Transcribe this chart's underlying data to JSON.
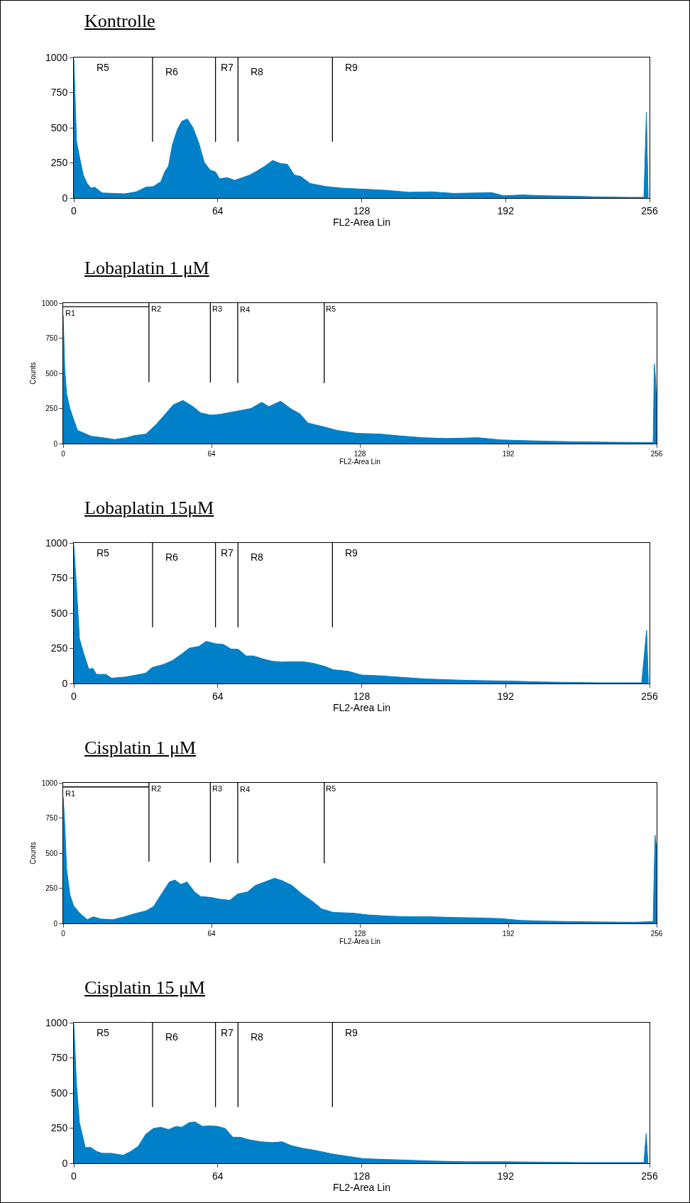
{
  "chart_data": [
    {
      "type": "area",
      "title": "Kontrolle",
      "xlabel": "FL2-Area Lin",
      "xlim": [
        0,
        256
      ],
      "xticks": [
        0,
        64,
        128,
        192,
        256
      ],
      "ylim": [
        0,
        1000
      ],
      "yticks": [
        0,
        250,
        500,
        750,
        1000
      ],
      "series": [
        {
          "color": "#0080c8",
          "x": [
            0,
            1.2,
            2.5,
            4.2,
            5.9,
            7.6,
            9.3,
            12.6,
            17.7,
            22.7,
            27.8,
            32,
            35.4,
            38.7,
            40.4,
            42.1,
            43.8,
            46,
            48,
            50.5,
            53,
            55.6,
            58,
            60.6,
            63,
            64.8,
            68.2,
            71.5,
            75,
            78.3,
            81.6,
            85,
            88.4,
            91.8,
            95,
            98,
            101,
            105,
            112,
            118.7,
            128.8,
            138.9,
            149,
            159,
            169,
            179,
            186,
            191,
            199.5,
            209.6,
            219.7,
            233,
            246.6,
            253.5,
            254.6,
            255.4
          ],
          "values": [
            990,
            404,
            295,
            164,
            104,
            71,
            77,
            36,
            33,
            30,
            44,
            77,
            82,
            117,
            186,
            227,
            377,
            486,
            546,
            563,
            500,
            391,
            254,
            199,
            186,
            137,
            145,
            126,
            145,
            164,
            194,
            227,
            268,
            246,
            240,
            164,
            153,
            104,
            82,
            71,
            63,
            55,
            41,
            44,
            33,
            36,
            38,
            16,
            22,
            16,
            14,
            8,
            5,
            5,
            610,
            0
          ]
        }
      ],
      "ref_lines": [
        {
          "axis": "x",
          "value": 35,
          "color": "#000000"
        },
        {
          "axis": "x",
          "value": 63,
          "color": "#000000"
        },
        {
          "axis": "x",
          "value": 73,
          "color": "#000000"
        },
        {
          "axis": "x",
          "value": 115,
          "color": "#000000"
        }
      ],
      "annotations": [
        "R5",
        "R6",
        "R7",
        "R8",
        "R9"
      ]
    },
    {
      "type": "area",
      "title": "Lobaplatin 1 μM",
      "xlabel": "FL2-Area Lin",
      "ylabel": "Counts",
      "xlim": [
        0,
        256
      ],
      "xticks": [
        0,
        64,
        128,
        192,
        256
      ],
      "ylim": [
        0,
        1000
      ],
      "yticks": [
        0,
        250,
        500,
        750,
        1000
      ],
      "series": [
        {
          "color": "#0080c8",
          "x": [
            0,
            0.7,
            1.5,
            2.9,
            4.5,
            6.2,
            8.8,
            12.1,
            17.2,
            22.2,
            27.3,
            30.6,
            35.7,
            39.9,
            44.1,
            47.5,
            51.7,
            56,
            59.3,
            63.5,
            67.7,
            71,
            76,
            81,
            85.7,
            88.7,
            93.8,
            98,
            102.2,
            105.6,
            112.3,
            118.2,
            126.6,
            136.7,
            145,
            155.2,
            165.3,
            178.8,
            189,
            199,
            210.8,
            222.6,
            236,
            249.5,
            254.5,
            255,
            255.5,
            256
          ],
          "values": [
            914,
            523,
            354,
            250,
            172,
            94,
            76,
            52,
            42,
            29,
            42,
            57,
            68,
            133,
            211,
            276,
            307,
            263,
            219,
            203,
            208,
            219,
            234,
            250,
            294,
            263,
            302,
            250,
            211,
            146,
            120,
            94,
            73,
            68,
            55,
            42,
            36,
            42,
            26,
            21,
            16,
            13,
            10,
            8,
            8,
            568,
            471,
            276
          ]
        },
        {
          "type": "line",
          "color": "#000000",
          "x": [
            0,
            37
          ],
          "values": [
            974,
            974
          ]
        },
        {
          "type": "line",
          "color": "#000000",
          "x": [
            37,
            37
          ],
          "values": [
            1000,
            437
          ]
        },
        {
          "type": "line",
          "color": "#000000",
          "x": [
            63.5,
            63.5
          ],
          "values": [
            1000,
            435
          ]
        },
        {
          "type": "line",
          "color": "#000000",
          "x": [
            75.3,
            75.3
          ],
          "values": [
            1000,
            430
          ]
        },
        {
          "type": "line",
          "color": "#000000",
          "x": [
            112.6,
            112.6
          ],
          "values": [
            1000,
            430
          ]
        }
      ],
      "annotations": [
        {
          "text": "R1",
          "x": 0.3,
          "y": 927
        },
        {
          "text": "R2",
          "x": 37.4,
          "y": 961
        },
        {
          "text": "R3",
          "x": 63.8,
          "y": 961
        },
        {
          "text": "R4",
          "x": 75.5,
          "y": 955
        },
        {
          "text": "R5",
          "x": 112.8,
          "y": 961
        }
      ]
    },
    {
      "type": "area",
      "title": "Lobaplatin 15μM",
      "xlabel": "FL2-Area Lin",
      "xlim": [
        0,
        256
      ],
      "xticks": [
        0,
        64,
        128,
        192,
        256
      ],
      "ylim": [
        0,
        1000
      ],
      "yticks": [
        0,
        250,
        500,
        750,
        1000
      ],
      "series": [
        {
          "color": "#0080c8",
          "x": [
            0,
            1.2,
            2.5,
            4.2,
            6.7,
            8.4,
            10.1,
            14.3,
            16.8,
            22.7,
            27.8,
            32,
            34.8,
            39.6,
            43.8,
            48,
            51.3,
            55.6,
            58.9,
            63.1,
            66.5,
            69.9,
            73.2,
            76.6,
            80,
            84.2,
            88.4,
            92.6,
            97.6,
            101.9,
            106.9,
            112,
            115.3,
            122,
            128,
            137.2,
            145.6,
            155.7,
            165.8,
            176,
            186,
            196,
            208,
            219.7,
            233,
            246.6,
            252.5,
            254.7,
            255.5
          ],
          "values": [
            980,
            687,
            319,
            223,
            101,
            109,
            65,
            65,
            38,
            46,
            60,
            74,
            114,
            134,
            163,
            210,
            251,
            264,
            300,
            283,
            278,
            245,
            243,
            196,
            196,
            174,
            158,
            153,
            155,
            155,
            142,
            120,
            98,
            87,
            60,
            54,
            44,
            33,
            27,
            22,
            19,
            16,
            11,
            8,
            5,
            5,
            5,
            379,
            5
          ]
        }
      ],
      "ref_lines": [
        {
          "axis": "x",
          "value": 35,
          "color": "#000000"
        },
        {
          "axis": "x",
          "value": 63,
          "color": "#000000"
        },
        {
          "axis": "x",
          "value": 73,
          "color": "#000000"
        },
        {
          "axis": "x",
          "value": 115,
          "color": "#000000"
        }
      ],
      "annotations": [
        "R5",
        "R6",
        "R7",
        "R8",
        "R9"
      ]
    },
    {
      "type": "area",
      "title": "Cisplatin 1 μM",
      "xlabel": "FL2-Area Lin",
      "ylabel": "Counts",
      "xlim": [
        0,
        256
      ],
      "xticks": [
        0,
        64,
        128,
        192,
        256
      ],
      "ylim": [
        0,
        1000
      ],
      "yticks": [
        0,
        250,
        500,
        750,
        1000
      ],
      "series": [
        {
          "color": "#0080c8",
          "x": [
            0,
            0.7,
            1.5,
            2.9,
            4.5,
            7.1,
            10.4,
            13,
            16.3,
            21.4,
            26.4,
            30.6,
            35.7,
            39,
            42.4,
            45.8,
            48.3,
            50.8,
            53.4,
            56.7,
            59.3,
            63.5,
            67.7,
            71.9,
            75.3,
            79.5,
            82.8,
            87,
            91.2,
            94.6,
            98.8,
            103,
            108,
            111.4,
            116.5,
            124.9,
            131.6,
            140,
            148.5,
            158.6,
            168.7,
            178.8,
            188.9,
            197.3,
            207.4,
            219.2,
            232.7,
            246.1,
            254.5,
            255.3,
            255.9,
            256
          ],
          "values": [
            900,
            700,
            386,
            204,
            125,
            73,
            26,
            47,
            31,
            26,
            47,
            68,
            89,
            120,
            209,
            295,
            308,
            277,
            295,
            224,
            191,
            185,
            172,
            164,
            209,
            224,
            269,
            295,
            321,
            303,
            269,
            209,
            151,
            104,
            78,
            73,
            60,
            52,
            47,
            47,
            42,
            39,
            34,
            21,
            16,
            13,
            10,
            8,
            13,
            629,
            543,
            256
          ]
        },
        {
          "type": "line",
          "color": "#000000",
          "x": [
            0,
            37
          ],
          "values": [
            971,
            971
          ]
        },
        {
          "type": "line",
          "color": "#000000",
          "x": [
            37,
            37
          ],
          "values": [
            1000,
            439
          ]
        },
        {
          "type": "line",
          "color": "#000000",
          "x": [
            63.5,
            63.5
          ],
          "values": [
            1000,
            433
          ]
        },
        {
          "type": "line",
          "color": "#000000",
          "x": [
            75.3,
            75.3
          ],
          "values": [
            1000,
            428
          ]
        },
        {
          "type": "line",
          "color": "#000000",
          "x": [
            112.6,
            112.6
          ],
          "values": [
            1000,
            428
          ]
        }
      ],
      "annotations": [
        {
          "text": "R1",
          "x": 0.3,
          "y": 924
        },
        {
          "text": "R2",
          "x": 37.4,
          "y": 961
        },
        {
          "text": "R3",
          "x": 63.8,
          "y": 961
        },
        {
          "text": "R4",
          "x": 75.5,
          "y": 953
        },
        {
          "text": "R5",
          "x": 112.8,
          "y": 961
        }
      ]
    },
    {
      "type": "area",
      "title": "Cisplatin 15 μM",
      "xlabel": "FL2-Area Lin",
      "xlim": [
        0,
        256
      ],
      "xticks": [
        0,
        64,
        128,
        192,
        256
      ],
      "ylim": [
        0,
        1000
      ],
      "yticks": [
        0,
        250,
        500,
        750,
        1000
      ],
      "series": [
        {
          "color": "#0080c8",
          "x": [
            0,
            1.2,
            2.5,
            5.1,
            7.6,
            10.1,
            12.6,
            16.8,
            21.9,
            25.3,
            28.6,
            32,
            35.4,
            38.7,
            42.1,
            45.5,
            48,
            51.3,
            53.9,
            57.2,
            60.6,
            64,
            67.3,
            70.7,
            74,
            78.3,
            83.3,
            88.4,
            92.6,
            96.8,
            101.9,
            106.9,
            112,
            115.3,
            122,
            128.8,
            139,
            149,
            159,
            174,
            191,
            208,
            224.7,
            241.6,
            253.5,
            254.5,
            255.3
          ],
          "values": [
            990,
            561,
            289,
            112,
            112,
            84,
            71,
            71,
            57,
            84,
            120,
            207,
            248,
            256,
            240,
            262,
            256,
            289,
            294,
            262,
            267,
            262,
            248,
            185,
            185,
            166,
            153,
            147,
            153,
            125,
            106,
            93,
            76,
            65,
            49,
            33,
            27,
            22,
            16,
            11,
            11,
            8,
            5,
            5,
            5,
            213,
            0
          ]
        }
      ],
      "ref_lines": [
        {
          "axis": "x",
          "value": 35,
          "color": "#000000"
        },
        {
          "axis": "x",
          "value": 63,
          "color": "#000000"
        },
        {
          "axis": "x",
          "value": 73,
          "color": "#000000"
        },
        {
          "axis": "x",
          "value": 115,
          "color": "#000000"
        }
      ],
      "annotations": [
        "R5",
        "R6",
        "R7",
        "R8",
        "R9"
      ]
    }
  ]
}
